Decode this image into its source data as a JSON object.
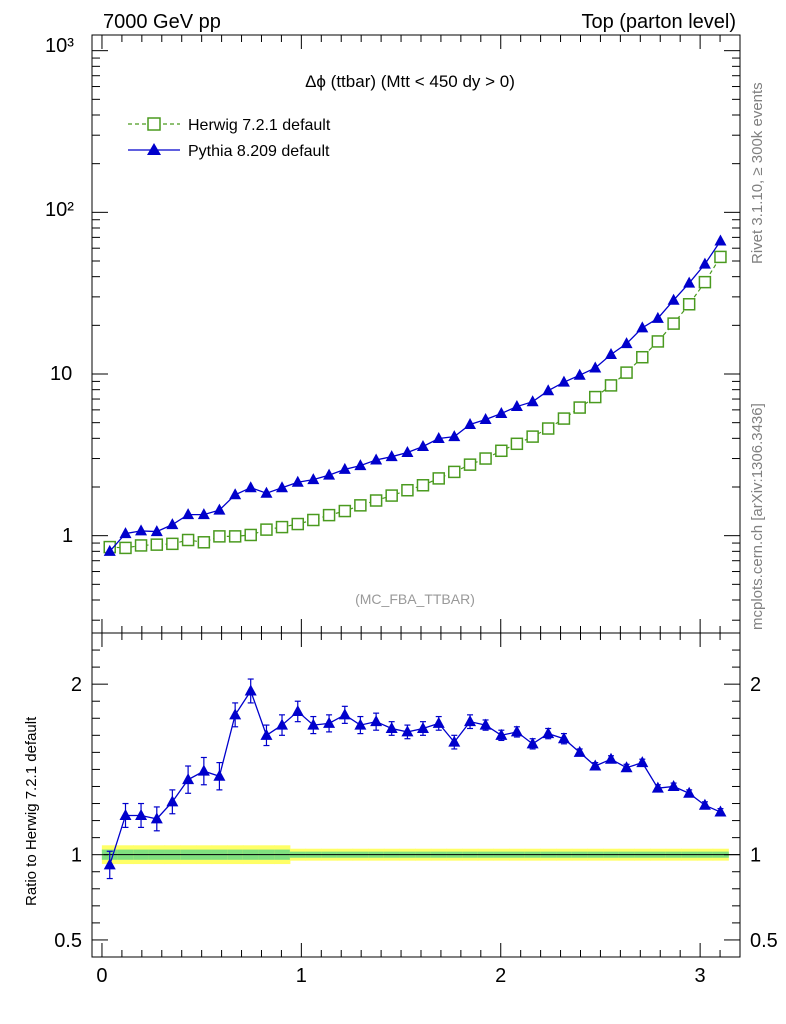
{
  "header": {
    "left": "7000 GeV pp",
    "right": "Top (parton level)"
  },
  "side_labels": {
    "rivet": "Rivet 3.1.10, ≥ 300k events",
    "mcplots": "mcplots.cern.ch [arXiv:1306.3436]"
  },
  "colors": {
    "herwig": "#4a9a1f",
    "pythia": "#0000cc",
    "band_inner": "#7fe07f",
    "band_outer": "#ffff66"
  },
  "chart_data": [
    {
      "type": "line",
      "title": "Δϕ (ttbar) (Mtt < 450 dy > 0)",
      "watermark": "(MC_FBA_TTBAR)",
      "yscale": "log",
      "xlim": [
        -0.05,
        3.2
      ],
      "ylim": [
        0.25,
        1250
      ],
      "y_tick_labels": [
        "1",
        "10",
        "10²",
        "10³"
      ],
      "legend_position": "top-left",
      "x": [
        0.039,
        0.118,
        0.196,
        0.275,
        0.353,
        0.432,
        0.511,
        0.589,
        0.668,
        0.746,
        0.825,
        0.903,
        0.982,
        1.06,
        1.139,
        1.218,
        1.296,
        1.375,
        1.453,
        1.532,
        1.61,
        1.689,
        1.767,
        1.846,
        1.924,
        2.003,
        2.081,
        2.16,
        2.238,
        2.317,
        2.396,
        2.474,
        2.553,
        2.631,
        2.71,
        2.788,
        2.867,
        2.945,
        3.024,
        3.102
      ],
      "series": [
        {
          "name": "Herwig 7.2.1 default",
          "marker": "open-square",
          "line": "dashed",
          "values": [
            0.85,
            0.84,
            0.87,
            0.88,
            0.89,
            0.94,
            0.91,
            0.99,
            0.99,
            1.01,
            1.09,
            1.13,
            1.18,
            1.25,
            1.34,
            1.42,
            1.54,
            1.65,
            1.77,
            1.91,
            2.05,
            2.26,
            2.48,
            2.75,
            3.0,
            3.35,
            3.7,
            4.1,
            4.6,
            5.3,
            6.2,
            7.2,
            8.5,
            10.2,
            12.7,
            15.9,
            20.5,
            27.0,
            37.0,
            53.0
          ]
        },
        {
          "name": "Pythia 8.209 default",
          "marker": "filled-triangle",
          "line": "solid",
          "values": [
            0.8,
            1.03,
            1.07,
            1.06,
            1.17,
            1.35,
            1.35,
            1.44,
            1.79,
            1.98,
            1.83,
            1.98,
            2.14,
            2.22,
            2.37,
            2.57,
            2.71,
            2.94,
            3.08,
            3.27,
            3.56,
            3.99,
            4.1,
            4.87,
            5.23,
            5.7,
            6.29,
            6.74,
            7.88,
            8.9,
            9.83,
            10.9,
            13.2,
            15.4,
            19.3,
            22.1,
            28.6,
            36.5,
            47.8,
            66.5
          ]
        }
      ]
    },
    {
      "type": "line",
      "ylabel": "Ratio to Herwig 7.2.1 default",
      "xlim": [
        -0.05,
        3.2
      ],
      "ylim": [
        0.4,
        2.3
      ],
      "x_ticks": [
        0,
        1,
        2,
        3
      ],
      "y_ticks": [
        0.5,
        1,
        2
      ],
      "reference": 1,
      "x": [
        0.039,
        0.118,
        0.196,
        0.275,
        0.353,
        0.432,
        0.511,
        0.589,
        0.668,
        0.746,
        0.825,
        0.903,
        0.982,
        1.06,
        1.139,
        1.218,
        1.296,
        1.375,
        1.453,
        1.532,
        1.61,
        1.689,
        1.767,
        1.846,
        1.924,
        2.003,
        2.081,
        2.16,
        2.238,
        2.317,
        2.396,
        2.474,
        2.553,
        2.631,
        2.71,
        2.788,
        2.867,
        2.945,
        3.024,
        3.102
      ],
      "series": [
        {
          "name": "Pythia 8.209 default",
          "values": [
            0.94,
            1.23,
            1.23,
            1.21,
            1.31,
            1.44,
            1.49,
            1.46,
            1.82,
            1.96,
            1.7,
            1.76,
            1.84,
            1.76,
            1.77,
            1.82,
            1.76,
            1.78,
            1.74,
            1.72,
            1.74,
            1.77,
            1.66,
            1.78,
            1.76,
            1.7,
            1.72,
            1.65,
            1.71,
            1.68,
            1.6,
            1.52,
            1.56,
            1.51,
            1.54,
            1.39,
            1.4,
            1.36,
            1.29,
            1.25
          ],
          "errors": [
            0.08,
            0.07,
            0.07,
            0.07,
            0.07,
            0.08,
            0.08,
            0.08,
            0.07,
            0.07,
            0.06,
            0.06,
            0.06,
            0.05,
            0.05,
            0.05,
            0.05,
            0.05,
            0.04,
            0.04,
            0.04,
            0.04,
            0.04,
            0.04,
            0.03,
            0.03,
            0.03,
            0.03,
            0.03,
            0.03,
            0.02,
            0.02,
            0.02,
            0.02,
            0.02,
            0.02,
            0.02,
            0.02,
            0.02,
            0.02
          ]
        }
      ]
    }
  ]
}
